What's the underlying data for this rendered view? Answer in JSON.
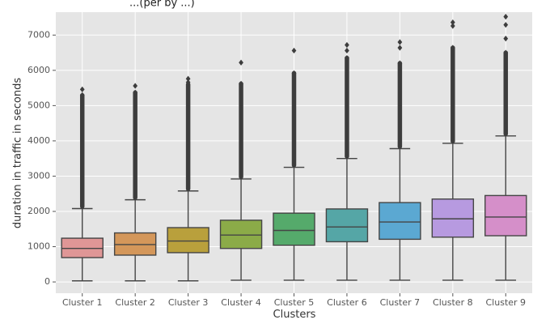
{
  "chart_data": {
    "type": "box",
    "title": "...(per by ...)",
    "xlabel": "Clusters",
    "ylabel": "duration in traffic in seconds",
    "ylim": [
      -320,
      7650
    ],
    "yticks": [
      0,
      1000,
      2000,
      3000,
      4000,
      5000,
      6000,
      7000
    ],
    "grid": true,
    "background": "#e5e5e5",
    "categories": [
      "Cluster 1",
      "Cluster 2",
      "Cluster 3",
      "Cluster 4",
      "Cluster 5",
      "Cluster 6",
      "Cluster 7",
      "Cluster 8",
      "Cluster 9"
    ],
    "boxes": [
      {
        "label": "Cluster 1",
        "min": 30,
        "q1": 690,
        "median": 950,
        "q3": 1240,
        "whisker_high": 2080,
        "outlier_max": 5460,
        "outliers_top": [
          5460,
          5300
        ],
        "color": "#df9696"
      },
      {
        "label": "Cluster 2",
        "min": 30,
        "q1": 760,
        "median": 1060,
        "q3": 1390,
        "whisker_high": 2330,
        "outlier_max": 5560,
        "outliers_top": [
          5560,
          5370
        ],
        "color": "#d4975a"
      },
      {
        "label": "Cluster 3",
        "min": 30,
        "q1": 830,
        "median": 1160,
        "q3": 1540,
        "whisker_high": 2580,
        "outlier_max": 5760,
        "outliers_top": [
          5760,
          5660
        ],
        "color": "#b9a03c"
      },
      {
        "label": "Cluster 4",
        "min": 50,
        "q1": 950,
        "median": 1330,
        "q3": 1750,
        "whisker_high": 2920,
        "outlier_max": 6220,
        "outliers_top": [
          6220,
          5620
        ],
        "color": "#8bab48"
      },
      {
        "label": "Cluster 5",
        "min": 50,
        "q1": 1040,
        "median": 1460,
        "q3": 1950,
        "whisker_high": 3250,
        "outlier_max": 6560,
        "outliers_top": [
          6560,
          5920
        ],
        "color": "#55aa6b"
      },
      {
        "label": "Cluster 6",
        "min": 50,
        "q1": 1140,
        "median": 1560,
        "q3": 2070,
        "whisker_high": 3500,
        "outlier_max": 6720,
        "outliers_top": [
          6720,
          6560,
          6350
        ],
        "color": "#55a6a6"
      },
      {
        "label": "Cluster 7",
        "min": 50,
        "q1": 1210,
        "median": 1700,
        "q3": 2250,
        "whisker_high": 3780,
        "outlier_max": 6800,
        "outliers_top": [
          6800,
          6640,
          6200
        ],
        "color": "#5ba8d2"
      },
      {
        "label": "Cluster 8",
        "min": 50,
        "q1": 1270,
        "median": 1790,
        "q3": 2350,
        "whisker_high": 3930,
        "outlier_max": 7360,
        "outliers_top": [
          7360,
          7260,
          6640
        ],
        "color": "#b79ae0"
      },
      {
        "label": "Cluster 9",
        "min": 50,
        "q1": 1310,
        "median": 1840,
        "q3": 2450,
        "whisker_high": 4140,
        "outlier_max": 7520,
        "outliers_top": [
          7520,
          7290,
          6900,
          6500
        ],
        "color": "#d58fc9"
      }
    ]
  }
}
